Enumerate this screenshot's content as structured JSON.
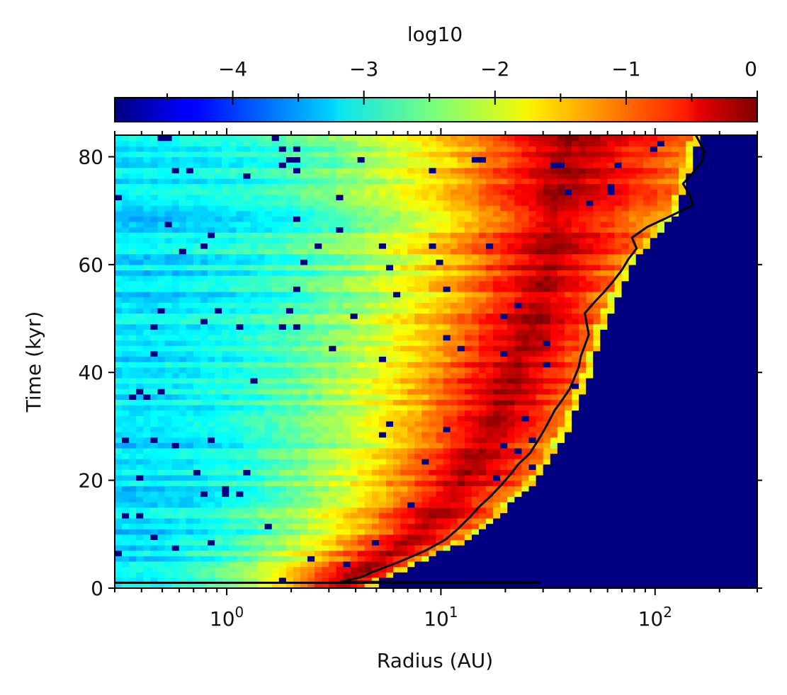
{
  "chart_data": {
    "type": "heatmap",
    "title": "",
    "xlabel": "Radius (AU)",
    "ylabel": "Time (kyr)",
    "x_scale": "log",
    "xlim": [
      0.3,
      300
    ],
    "ylim": [
      0,
      84
    ],
    "x_ticks": [
      {
        "value": 1,
        "base": "10",
        "exp": "0"
      },
      {
        "value": 10,
        "base": "10",
        "exp": "1"
      },
      {
        "value": 100,
        "base": "10",
        "exp": "2"
      }
    ],
    "y_ticks": [
      {
        "value": 0,
        "label": "0"
      },
      {
        "value": 20,
        "label": "20"
      },
      {
        "value": 40,
        "label": "40"
      },
      {
        "value": 60,
        "label": "60"
      },
      {
        "value": 80,
        "label": "80"
      }
    ],
    "colormap": "jet",
    "colorbar": {
      "label": "log10",
      "position": "top",
      "range": [
        -4.9,
        0
      ],
      "ticks": [
        {
          "value": -4,
          "label": "−4"
        },
        {
          "value": -3,
          "label": "−3"
        },
        {
          "value": -2,
          "label": "−2"
        },
        {
          "value": -1,
          "label": "−1"
        },
        {
          "value": 0,
          "label": "0"
        }
      ]
    },
    "background_value_outside_disk": -4.9,
    "profile_approx": {
      "description_points": [
        {
          "t": 1,
          "peak_r": 3.5,
          "edge_r": 5
        },
        {
          "t": 10,
          "peak_r": 8,
          "edge_r": 15
        },
        {
          "t": 20,
          "peak_r": 13,
          "edge_r": 28
        },
        {
          "t": 30,
          "peak_r": 18,
          "edge_r": 40
        },
        {
          "t": 40,
          "peak_r": 22,
          "edge_r": 50
        },
        {
          "t": 50,
          "peak_r": 28,
          "edge_r": 60
        },
        {
          "t": 60,
          "peak_r": 32,
          "edge_r": 78
        },
        {
          "t": 70,
          "peak_r": 35,
          "edge_r": 130
        },
        {
          "t": 84,
          "peak_r": 40,
          "edge_r": 160
        }
      ],
      "inner_value": -3.2
    },
    "boundary_line": {
      "color": "#000000",
      "points": [
        [
          0.3,
          1
        ],
        [
          29,
          1
        ],
        [
          3.4,
          1.2
        ],
        [
          4.2,
          2
        ],
        [
          4.8,
          3
        ],
        [
          6.5,
          5
        ],
        [
          8.5,
          7
        ],
        [
          10.5,
          9
        ],
        [
          12,
          11
        ],
        [
          13.5,
          13
        ],
        [
          15,
          15
        ],
        [
          17,
          17
        ],
        [
          19,
          19
        ],
        [
          21,
          21
        ],
        [
          23,
          23
        ],
        [
          26,
          25
        ],
        [
          28,
          27
        ],
        [
          30,
          29
        ],
        [
          32,
          31
        ],
        [
          34,
          33
        ],
        [
          37,
          35
        ],
        [
          40,
          37
        ],
        [
          42,
          39
        ],
        [
          44,
          41
        ],
        [
          45,
          43
        ],
        [
          47,
          45
        ],
        [
          49,
          47
        ],
        [
          48,
          49
        ],
        [
          47,
          51
        ],
        [
          52,
          53
        ],
        [
          58,
          55
        ],
        [
          64,
          57
        ],
        [
          70,
          59
        ],
        [
          75,
          61
        ],
        [
          82,
          63
        ],
        [
          78,
          65
        ],
        [
          92,
          67
        ],
        [
          118,
          69
        ],
        [
          150,
          71
        ],
        [
          145,
          73
        ],
        [
          135,
          75
        ],
        [
          150,
          77
        ],
        [
          165,
          79
        ],
        [
          170,
          81
        ],
        [
          160,
          83
        ],
        [
          155,
          84
        ]
      ]
    }
  }
}
